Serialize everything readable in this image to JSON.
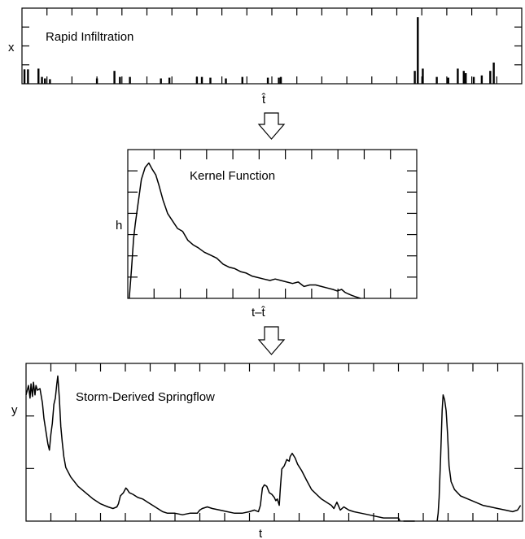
{
  "panels": {
    "infiltration": {
      "title": "Rapid Infiltration",
      "y_label": "x",
      "x_label": "t̂"
    },
    "kernel": {
      "title": "Kernel Function",
      "y_label": "h",
      "x_label": "t–t̂"
    },
    "springflow": {
      "title": "Storm-Derived Springflow",
      "y_label": "y",
      "x_label": "t"
    }
  },
  "arrows": [
    {
      "icon": "down-outline-arrow-icon"
    },
    {
      "icon": "down-outline-arrow-icon"
    }
  ],
  "colors": {
    "ink": "#000000",
    "background": "#ffffff"
  },
  "chart_data": [
    {
      "type": "bar",
      "x_range": [
        0,
        100
      ],
      "y_range": [
        0,
        1
      ],
      "values_by_x": [
        [
          0.5,
          0.19
        ],
        [
          1.2,
          0.19
        ],
        [
          3.3,
          0.2
        ],
        [
          4.0,
          0.09
        ],
        [
          4.6,
          0.07
        ],
        [
          5.6,
          0.06
        ],
        [
          15.0,
          0.07
        ],
        [
          18.5,
          0.17
        ],
        [
          19.6,
          0.09
        ],
        [
          21.6,
          0.09
        ],
        [
          27.8,
          0.07
        ],
        [
          29.5,
          0.08
        ],
        [
          35.0,
          0.09
        ],
        [
          36.0,
          0.09
        ],
        [
          37.7,
          0.08
        ],
        [
          40.8,
          0.07
        ],
        [
          44.1,
          0.09
        ],
        [
          49.2,
          0.08
        ],
        [
          51.4,
          0.08
        ],
        [
          51.8,
          0.09
        ],
        [
          78.6,
          0.17
        ],
        [
          79.2,
          0.88
        ],
        [
          80.2,
          0.2
        ],
        [
          83.0,
          0.09
        ],
        [
          85.3,
          0.08
        ],
        [
          87.2,
          0.2
        ],
        [
          88.4,
          0.17
        ],
        [
          88.8,
          0.14
        ],
        [
          90.4,
          0.09
        ],
        [
          92.0,
          0.11
        ],
        [
          93.7,
          0.17
        ],
        [
          94.4,
          0.28
        ]
      ]
    },
    {
      "type": "line",
      "x_range": [
        0,
        100
      ],
      "y_range": [
        0,
        1
      ],
      "points": [
        [
          0.5,
          0.0
        ],
        [
          1.3,
          0.2
        ],
        [
          2.0,
          0.4
        ],
        [
          2.6,
          0.5
        ],
        [
          3.3,
          0.6
        ],
        [
          4.7,
          0.8
        ],
        [
          6.0,
          0.88
        ],
        [
          7.3,
          0.91
        ],
        [
          8.4,
          0.87
        ],
        [
          9.7,
          0.83
        ],
        [
          10.8,
          0.76
        ],
        [
          12.2,
          0.66
        ],
        [
          13.8,
          0.57
        ],
        [
          15.5,
          0.52
        ],
        [
          17.2,
          0.47
        ],
        [
          19.0,
          0.45
        ],
        [
          20.8,
          0.39
        ],
        [
          22.6,
          0.36
        ],
        [
          24.4,
          0.34
        ],
        [
          26.5,
          0.31
        ],
        [
          28.7,
          0.29
        ],
        [
          30.8,
          0.27
        ],
        [
          33.0,
          0.23
        ],
        [
          35.0,
          0.21
        ],
        [
          37.0,
          0.2
        ],
        [
          39.0,
          0.18
        ],
        [
          41.0,
          0.17
        ],
        [
          43.0,
          0.15
        ],
        [
          45.0,
          0.14
        ],
        [
          47.0,
          0.13
        ],
        [
          49.2,
          0.12
        ],
        [
          51.0,
          0.13
        ],
        [
          53.0,
          0.12
        ],
        [
          55.0,
          0.11
        ],
        [
          57.0,
          0.1
        ],
        [
          59.0,
          0.11
        ],
        [
          61.0,
          0.08
        ],
        [
          63.0,
          0.09
        ],
        [
          65.0,
          0.09
        ],
        [
          67.0,
          0.08
        ],
        [
          69.0,
          0.07
        ],
        [
          71.0,
          0.06
        ],
        [
          72.5,
          0.05
        ],
        [
          74.0,
          0.06
        ],
        [
          75.2,
          0.04
        ],
        [
          76.3,
          0.03
        ],
        [
          77.5,
          0.02
        ],
        [
          79.0,
          0.01
        ],
        [
          80.5,
          0.0
        ]
      ]
    },
    {
      "type": "line",
      "x_range": [
        0,
        100
      ],
      "y_range": [
        0,
        1
      ],
      "segments": [
        [
          [
            0.0,
            0.8
          ],
          [
            0.5,
            0.86
          ],
          [
            0.8,
            0.78
          ],
          [
            1.0,
            0.87
          ],
          [
            1.3,
            0.79
          ],
          [
            1.5,
            0.88
          ],
          [
            1.8,
            0.8
          ],
          [
            2.0,
            0.86
          ],
          [
            2.3,
            0.83
          ],
          [
            2.8,
            0.84
          ],
          [
            3.3,
            0.75
          ],
          [
            3.6,
            0.65
          ],
          [
            4.0,
            0.57
          ],
          [
            4.4,
            0.49
          ],
          [
            4.7,
            0.45
          ],
          [
            5.0,
            0.55
          ],
          [
            5.3,
            0.62
          ],
          [
            5.6,
            0.74
          ],
          [
            5.9,
            0.78
          ],
          [
            6.2,
            0.87
          ],
          [
            6.4,
            0.92
          ],
          [
            6.7,
            0.78
          ],
          [
            7.0,
            0.6
          ],
          [
            7.3,
            0.5
          ],
          [
            7.6,
            0.41
          ],
          [
            8.0,
            0.34
          ],
          [
            9.0,
            0.28
          ],
          [
            10.5,
            0.22
          ],
          [
            12.0,
            0.18
          ],
          [
            13.5,
            0.14
          ],
          [
            15.0,
            0.11
          ],
          [
            16.5,
            0.09
          ],
          [
            17.5,
            0.08
          ],
          [
            18.3,
            0.09
          ],
          [
            18.6,
            0.11
          ],
          [
            19.0,
            0.16
          ],
          [
            19.6,
            0.18
          ],
          [
            20.1,
            0.21
          ],
          [
            20.4,
            0.2
          ],
          [
            20.8,
            0.18
          ],
          [
            21.5,
            0.17
          ],
          [
            22.5,
            0.15
          ],
          [
            23.5,
            0.14
          ],
          [
            24.5,
            0.12
          ],
          [
            25.5,
            0.1
          ],
          [
            26.5,
            0.08
          ],
          [
            27.5,
            0.06
          ],
          [
            28.5,
            0.05
          ],
          [
            30.0,
            0.05
          ],
          [
            31.5,
            0.04
          ],
          [
            33.0,
            0.05
          ],
          [
            34.5,
            0.05
          ],
          [
            35.0,
            0.07
          ],
          [
            35.5,
            0.08
          ],
          [
            36.5,
            0.09
          ],
          [
            37.5,
            0.08
          ],
          [
            39.0,
            0.07
          ],
          [
            40.5,
            0.06
          ],
          [
            42.0,
            0.05
          ],
          [
            43.5,
            0.05
          ],
          [
            45.0,
            0.06
          ],
          [
            46.0,
            0.07
          ],
          [
            46.8,
            0.06
          ],
          [
            47.2,
            0.1
          ],
          [
            47.6,
            0.21
          ],
          [
            48.0,
            0.23
          ],
          [
            48.5,
            0.22
          ],
          [
            49.0,
            0.18
          ],
          [
            49.5,
            0.17
          ],
          [
            50.0,
            0.15
          ],
          [
            50.3,
            0.13
          ],
          [
            50.6,
            0.14
          ],
          [
            51.0,
            0.1
          ],
          [
            51.2,
            0.2
          ],
          [
            51.5,
            0.33
          ],
          [
            52.0,
            0.35
          ],
          [
            52.5,
            0.39
          ],
          [
            53.0,
            0.38
          ],
          [
            53.2,
            0.41
          ],
          [
            53.6,
            0.43
          ],
          [
            54.2,
            0.4
          ],
          [
            54.7,
            0.36
          ],
          [
            55.5,
            0.32
          ],
          [
            56.5,
            0.26
          ],
          [
            57.5,
            0.2
          ],
          [
            58.5,
            0.17
          ],
          [
            59.5,
            0.14
          ],
          [
            60.5,
            0.12
          ],
          [
            61.5,
            0.1
          ],
          [
            62.0,
            0.08
          ],
          [
            62.6,
            0.12
          ],
          [
            63.3,
            0.07
          ],
          [
            64.0,
            0.09
          ],
          [
            65.0,
            0.07
          ],
          [
            66.0,
            0.06
          ],
          [
            67.5,
            0.05
          ],
          [
            69.0,
            0.04
          ],
          [
            70.5,
            0.03
          ],
          [
            72.0,
            0.02
          ],
          [
            73.5,
            0.02
          ],
          [
            75.0,
            0.02
          ],
          [
            75.3,
            0.0
          ]
        ],
        [
          [
            76.0,
            0.0
          ],
          [
            78.3,
            0.0
          ]
        ],
        [
          [
            82.8,
            0.0
          ],
          [
            83.0,
            0.05
          ],
          [
            83.2,
            0.15
          ],
          [
            83.5,
            0.4
          ],
          [
            83.8,
            0.7
          ],
          [
            84.0,
            0.8
          ],
          [
            84.3,
            0.77
          ],
          [
            84.6,
            0.7
          ],
          [
            84.9,
            0.55
          ],
          [
            85.2,
            0.35
          ],
          [
            85.6,
            0.25
          ],
          [
            86.3,
            0.2
          ],
          [
            87.5,
            0.16
          ],
          [
            89.0,
            0.14
          ],
          [
            90.5,
            0.12
          ],
          [
            92.0,
            0.1
          ],
          [
            93.5,
            0.09
          ],
          [
            95.0,
            0.08
          ],
          [
            96.5,
            0.07
          ],
          [
            98.0,
            0.06
          ],
          [
            99.0,
            0.07
          ],
          [
            99.6,
            0.1
          ]
        ]
      ]
    }
  ]
}
